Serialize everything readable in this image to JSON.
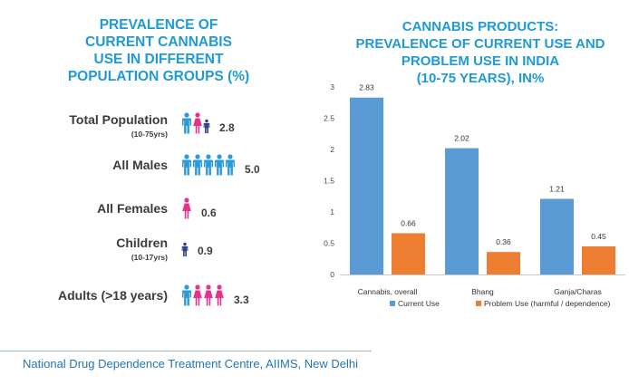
{
  "left_panel": {
    "title_lines": [
      "PREVALENCE OF",
      "CURRENT CANNABIS",
      "USE IN DIFFERENT",
      "POPULATION GROUPS (%)"
    ],
    "groups": [
      {
        "label": "Total Population",
        "sub": "(10-75yrs)",
        "value": "2.8",
        "icons": [
          "man",
          "woman",
          "child"
        ]
      },
      {
        "label": "All Males",
        "sub": "",
        "value": "5.0",
        "icons": [
          "man",
          "man",
          "man",
          "man",
          "man"
        ]
      },
      {
        "label": "All Females",
        "sub": "",
        "value": "0.6",
        "icons": [
          "woman"
        ]
      },
      {
        "label": "Children",
        "sub": "(10-17yrs)",
        "value": "0.9",
        "icons": [
          "child"
        ]
      },
      {
        "label": "Adults (>18 years)",
        "sub": "",
        "value": "3.3",
        "icons": [
          "man",
          "woman",
          "woman",
          "woman"
        ]
      }
    ],
    "colors": {
      "man": "#2a9bd6",
      "woman": "#e8318a",
      "child": "#2c3e8c"
    }
  },
  "footer": "National Drug Dependence Treatment Centre, AIIMS, New Delhi",
  "chart_data": {
    "type": "bar",
    "title_lines": [
      "CANNABIS PRODUCTS:",
      "PREVALENCE OF CURRENT USE AND",
      "PROBLEM USE IN INDIA",
      "(10-75 YEARS), IN%"
    ],
    "categories": [
      "Cannabis, overall",
      "Bhang",
      "Ganja/Charas"
    ],
    "series": [
      {
        "name": "Current Use",
        "values": [
          2.83,
          2.02,
          1.21
        ],
        "labels": [
          "2.83",
          "2.02",
          "1.21"
        ],
        "color": "#5b9bd5"
      },
      {
        "name": "Problem Use (harmful / dependence)",
        "values": [
          0.66,
          0.36,
          0.45
        ],
        "labels": [
          "0.66",
          "0.36",
          "0.45"
        ],
        "color": "#ed7d31"
      }
    ],
    "ylim": [
      0,
      3
    ],
    "yticks": [
      0,
      0.5,
      1,
      1.5,
      2,
      2.5,
      3
    ],
    "ytick_labels": [
      "0",
      "0.5",
      "1",
      "1.5",
      "2",
      "2.5",
      "3"
    ],
    "legend_position": "bottom",
    "grid": false
  }
}
